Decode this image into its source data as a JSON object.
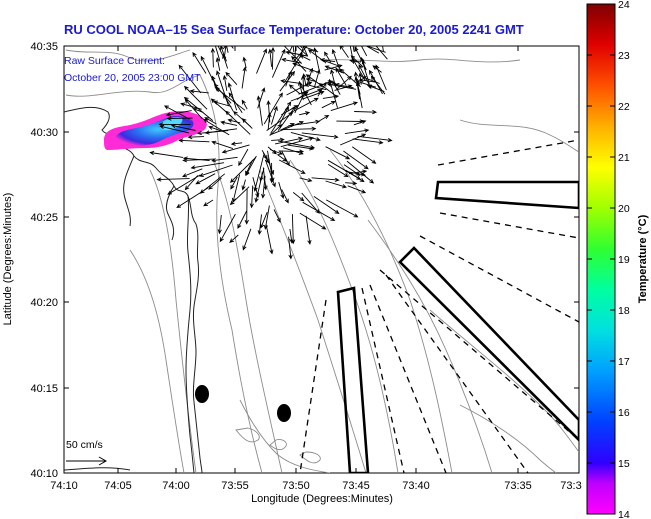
{
  "title": "RU COOL  NOAA–15  Sea Surface Temperature:  October 20, 2005 2241 GMT",
  "current_label": {
    "line1": "Raw Surface Current:",
    "line2": "October 20, 2005 23:00 GMT"
  },
  "scale_label": "50 cm/s",
  "axes": {
    "x_label": "Longitude (Degrees:Minutes)",
    "y_label": "Latitude (Degrees:Minutes)",
    "x_ticks": [
      "74:10",
      "74:05",
      "74:00",
      "73:55",
      "73:50",
      "73:45",
      "73:40",
      "73:35",
      "73:3"
    ],
    "y_ticks": [
      "40:35",
      "40:30",
      "40:25",
      "40:20",
      "40:15",
      "40:10"
    ]
  },
  "colorbar": {
    "title": "Temperature (°C)",
    "min": 14,
    "max": 24,
    "ticks": [
      "24",
      "23",
      "22",
      "21",
      "20",
      "19",
      "18",
      "17",
      "16",
      "15",
      "14"
    ]
  },
  "colors": {
    "title": "#1a1ad6",
    "sst_warm": "#2a7de0",
    "sst_cold": "#ff2bd6"
  }
}
